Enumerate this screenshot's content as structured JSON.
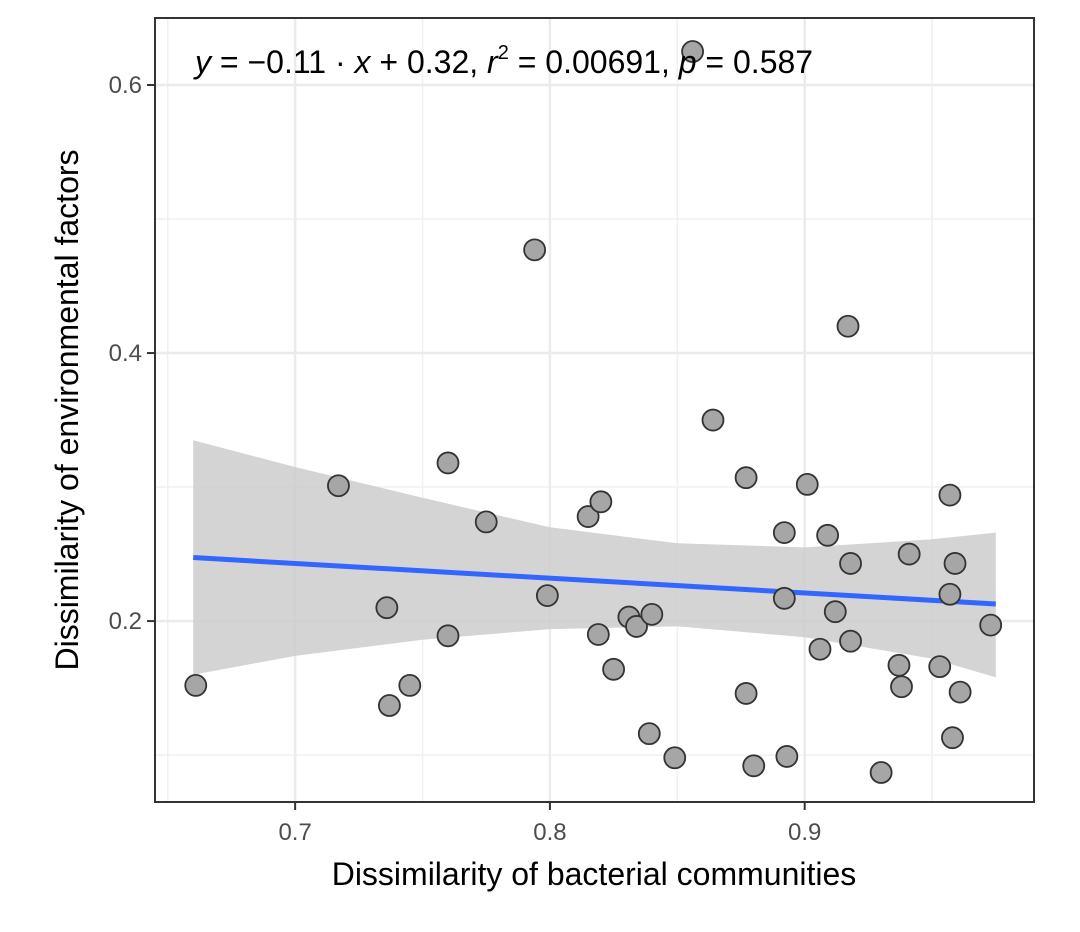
{
  "chart_data": {
    "type": "scatter",
    "title": "",
    "xlabel": "Dissimilarity of bacterial communities",
    "ylabel": "Dissimilarity of environmental factors",
    "xlim": [
      0.645,
      0.99
    ],
    "ylim": [
      0.065,
      0.65
    ],
    "x_ticks": [
      0.7,
      0.8,
      0.9
    ],
    "x_tick_labels": [
      "0.7",
      "0.8",
      "0.9"
    ],
    "x_minor_ticks": [
      0.65,
      0.75,
      0.85,
      0.95
    ],
    "y_ticks": [
      0.2,
      0.4,
      0.6
    ],
    "y_tick_labels": [
      "0.2",
      "0.4",
      "0.6"
    ],
    "y_minor_ticks": [
      0.1,
      0.3,
      0.5
    ],
    "grid": true,
    "annotation": {
      "y_var": "y",
      "eq_middle": " = −0.11 · ",
      "x_var": "x",
      "eq_tail": " + 0.32,   ",
      "r_var": "r",
      "r_exp": "2",
      "r_value": " = 0.00691,   ",
      "p_var": "p",
      "p_value": " = 0.587"
    },
    "regression": {
      "slope": -0.11,
      "intercept": 0.32,
      "x_range": [
        0.66,
        0.975
      ],
      "line_color": "#3366FF",
      "ci_upper": [
        [
          0.66,
          0.335
        ],
        [
          0.7,
          0.315
        ],
        [
          0.75,
          0.292
        ],
        [
          0.8,
          0.27
        ],
        [
          0.85,
          0.258
        ],
        [
          0.9,
          0.255
        ],
        [
          0.95,
          0.261
        ],
        [
          0.975,
          0.266
        ]
      ],
      "ci_lower": [
        [
          0.66,
          0.16
        ],
        [
          0.7,
          0.174
        ],
        [
          0.75,
          0.186
        ],
        [
          0.8,
          0.194
        ],
        [
          0.85,
          0.196
        ],
        [
          0.9,
          0.188
        ],
        [
          0.95,
          0.172
        ],
        [
          0.975,
          0.158
        ]
      ],
      "ci_color": "#cccccc"
    },
    "points": {
      "fill": "#a6a6a6",
      "stroke": "#333333",
      "x": [
        0.661,
        0.717,
        0.736,
        0.737,
        0.745,
        0.76,
        0.76,
        0.775,
        0.794,
        0.799,
        0.815,
        0.819,
        0.82,
        0.825,
        0.831,
        0.834,
        0.84,
        0.839,
        0.849,
        0.856,
        0.864,
        0.877,
        0.877,
        0.88,
        0.892,
        0.892,
        0.893,
        0.901,
        0.906,
        0.909,
        0.912,
        0.917,
        0.918,
        0.918,
        0.93,
        0.937,
        0.938,
        0.941,
        0.953,
        0.957,
        0.957,
        0.958,
        0.959,
        0.961,
        0.973
      ],
      "y": [
        0.152,
        0.301,
        0.21,
        0.137,
        0.152,
        0.318,
        0.189,
        0.274,
        0.477,
        0.219,
        0.278,
        0.19,
        0.289,
        0.164,
        0.203,
        0.196,
        0.205,
        0.116,
        0.098,
        0.625,
        0.35,
        0.307,
        0.146,
        0.092,
        0.266,
        0.217,
        0.099,
        0.302,
        0.179,
        0.264,
        0.207,
        0.42,
        0.243,
        0.185,
        0.087,
        0.167,
        0.151,
        0.25,
        0.166,
        0.294,
        0.22,
        0.113,
        0.243,
        0.147,
        0.197
      ]
    }
  }
}
